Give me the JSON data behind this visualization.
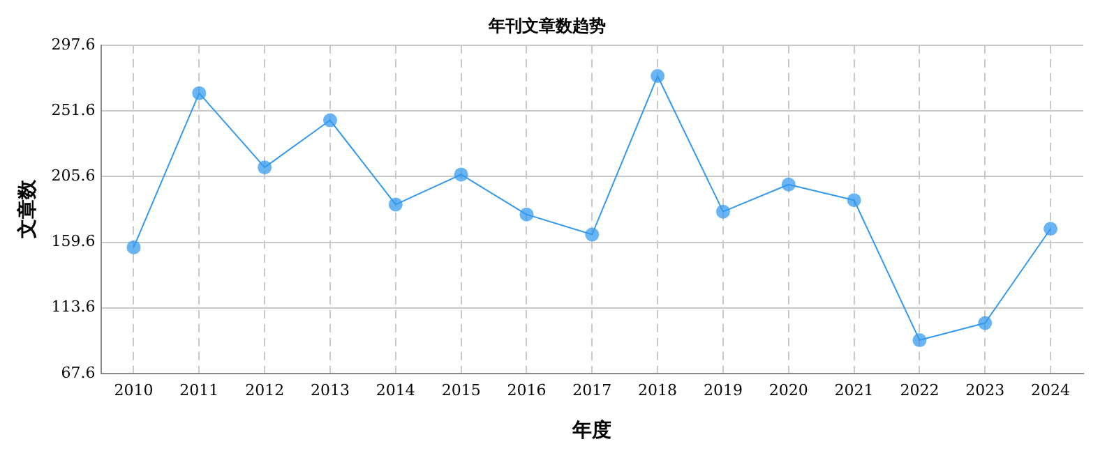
{
  "chart_data": {
    "type": "line",
    "title": "年刊文章数趋势",
    "xlabel": "年度",
    "ylabel": "文章数",
    "categories": [
      "2010",
      "2011",
      "2012",
      "2013",
      "2014",
      "2015",
      "2016",
      "2017",
      "2018",
      "2019",
      "2020",
      "2021",
      "2022",
      "2023",
      "2024"
    ],
    "series": [
      {
        "color": "#3399ee",
        "values": [
          156,
          264,
          212,
          245,
          186,
          207,
          179,
          165,
          276,
          181,
          200,
          189,
          91,
          103,
          169
        ]
      }
    ],
    "ylim": [
      67.6,
      297.6
    ],
    "yticks": [
      67.6,
      113.6,
      159.6,
      205.6,
      251.6,
      297.6
    ],
    "grid": true,
    "marker": "circle",
    "line_style": "solid",
    "legend": false
  }
}
